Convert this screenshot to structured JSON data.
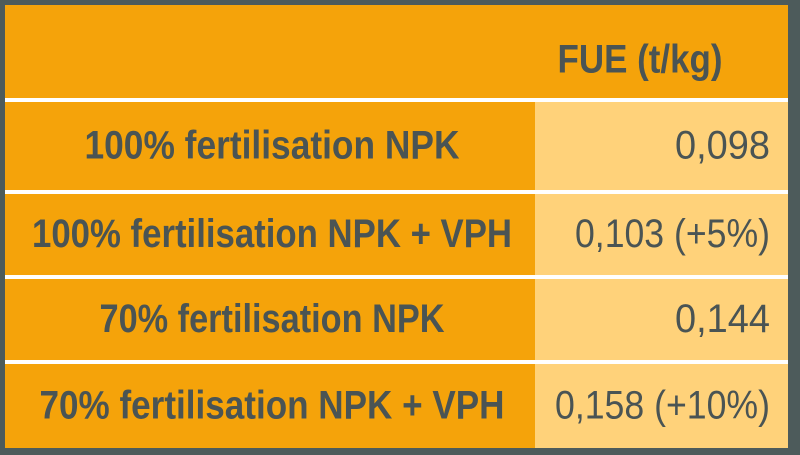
{
  "table": {
    "header": "FUE (t/kg)",
    "rows": [
      [
        "100% fertilisation NPK",
        "0,098"
      ],
      [
        "100% fertilisation NPK + VPH",
        "0,103 (+5%)"
      ],
      [
        "70% fertilisation NPK",
        "0,144"
      ],
      [
        "70% fertilisation NPK + VPH",
        "0,158 (+10%)"
      ]
    ]
  }
}
